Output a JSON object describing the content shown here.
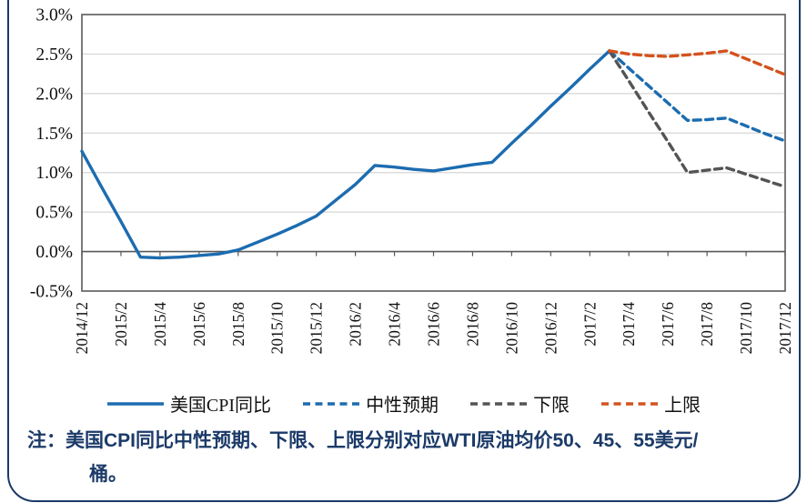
{
  "chart_data": {
    "type": "line",
    "title": "",
    "xlabel": "",
    "ylabel": "",
    "ylim": [
      -0.5,
      3.0
    ],
    "ytick_step": 0.5,
    "ytick_suffix": "%",
    "grid": "horizontal",
    "legend_position": "bottom",
    "x_tick_labels": [
      "2014/12",
      "2015/2",
      "2015/4",
      "2015/6",
      "2015/8",
      "2015/10",
      "2015/12",
      "2016/2",
      "2016/4",
      "2016/6",
      "2016/8",
      "2016/10",
      "2016/12",
      "2017/2",
      "2017/4",
      "2017/6",
      "2017/8",
      "2017/10",
      "2017/12"
    ],
    "x_monthly": [
      "2014/12",
      "2015/1",
      "2015/2",
      "2015/3",
      "2015/4",
      "2015/5",
      "2015/6",
      "2015/7",
      "2015/8",
      "2015/9",
      "2015/10",
      "2015/11",
      "2015/12",
      "2016/1",
      "2016/2",
      "2016/3",
      "2016/4",
      "2016/5",
      "2016/6",
      "2016/7",
      "2016/8",
      "2016/9",
      "2016/10",
      "2016/11",
      "2016/12",
      "2017/1",
      "2017/2",
      "2017/3",
      "2017/4",
      "2017/5",
      "2017/6",
      "2017/7",
      "2017/8",
      "2017/9",
      "2017/10",
      "2017/11",
      "2017/12"
    ],
    "series": [
      {
        "key": "actual-cpi",
        "name": "美国CPI同比",
        "line": "solid",
        "color": "#1c6cb0",
        "values": [
          1.27,
          0.82,
          0.38,
          -0.07,
          -0.08,
          -0.07,
          -0.05,
          -0.03,
          0.02,
          0.12,
          0.22,
          0.33,
          0.45,
          0.65,
          0.85,
          1.09,
          1.07,
          1.04,
          1.02,
          1.06,
          1.1,
          1.13,
          1.37,
          1.6,
          1.84,
          2.07,
          2.31,
          2.54,
          null,
          null,
          null,
          null,
          null,
          null,
          null,
          null,
          null
        ]
      },
      {
        "key": "neutral-forecast",
        "name": "中性预期",
        "line": "dashed",
        "color": "#1c6cb0",
        "values": [
          null,
          null,
          null,
          null,
          null,
          null,
          null,
          null,
          null,
          null,
          null,
          null,
          null,
          null,
          null,
          null,
          null,
          null,
          null,
          null,
          null,
          null,
          null,
          null,
          null,
          null,
          null,
          2.54,
          2.32,
          2.1,
          1.88,
          1.66,
          1.67,
          1.69,
          1.59,
          1.49,
          1.4
        ]
      },
      {
        "key": "lower-bound",
        "name": "下限",
        "line": "dashed",
        "color": "#545454",
        "values": [
          null,
          null,
          null,
          null,
          null,
          null,
          null,
          null,
          null,
          null,
          null,
          null,
          null,
          null,
          null,
          null,
          null,
          null,
          null,
          null,
          null,
          null,
          null,
          null,
          null,
          null,
          null,
          2.54,
          2.16,
          1.77,
          1.39,
          1.0,
          1.03,
          1.06,
          0.98,
          0.9,
          0.82
        ]
      },
      {
        "key": "upper-bound",
        "name": "上限",
        "line": "dashed",
        "color": "#d4521e",
        "values": [
          null,
          null,
          null,
          null,
          null,
          null,
          null,
          null,
          null,
          null,
          null,
          null,
          null,
          null,
          null,
          null,
          null,
          null,
          null,
          null,
          null,
          null,
          null,
          null,
          null,
          null,
          null,
          2.54,
          2.5,
          2.48,
          2.47,
          2.49,
          2.51,
          2.54,
          2.44,
          2.34,
          2.24
        ]
      }
    ]
  },
  "note": {
    "lines": [
      "注：美国CPI同比中性预期、下限、上限分别对应WTI原油均价50、45、55美元/",
      "桶。"
    ]
  },
  "colors": {
    "frame_border": "#1b3a68",
    "plot_frame": "#595959",
    "gridline": "#d6d6d6",
    "note_text": "#1b3a68"
  }
}
